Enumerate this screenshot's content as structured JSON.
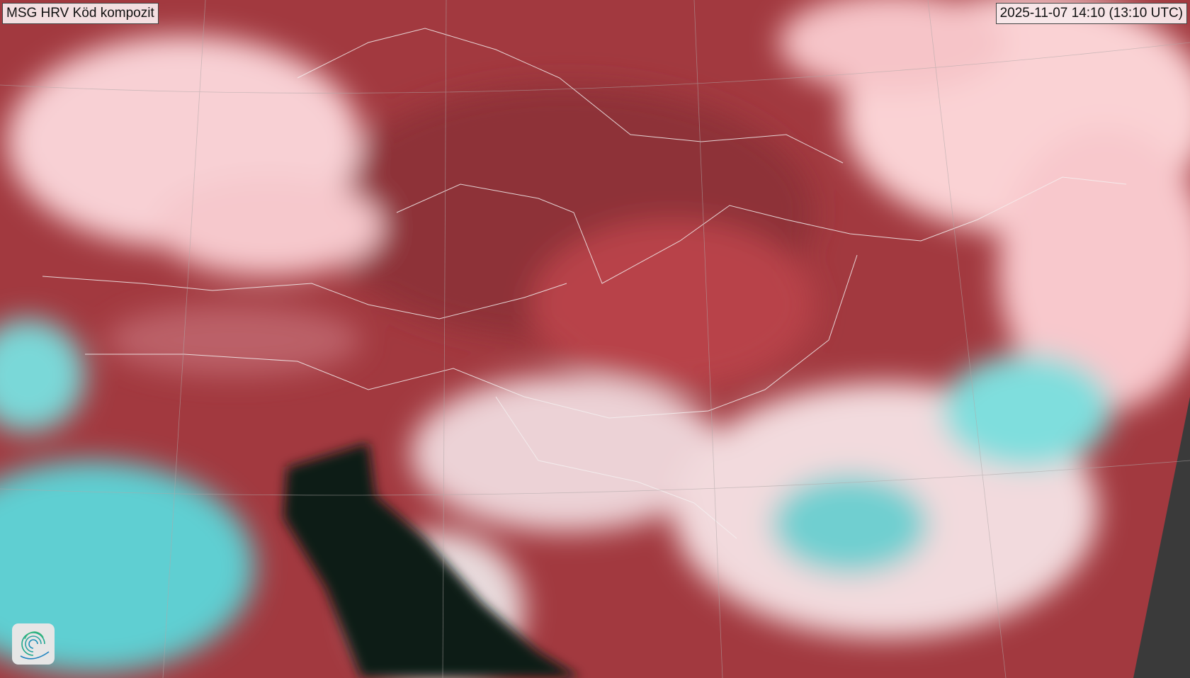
{
  "title": "MSG HRV Köd kompozit",
  "timestamp": "2025-11-07 14:10 (13:10 UTC)",
  "logo": "swirl-logo",
  "colors": {
    "land": "#a83c44",
    "cloud": "#f6c4c8",
    "low_cloud": "#6fdede",
    "sea": "#0e1a18",
    "no_data": "#3a3a3a"
  }
}
